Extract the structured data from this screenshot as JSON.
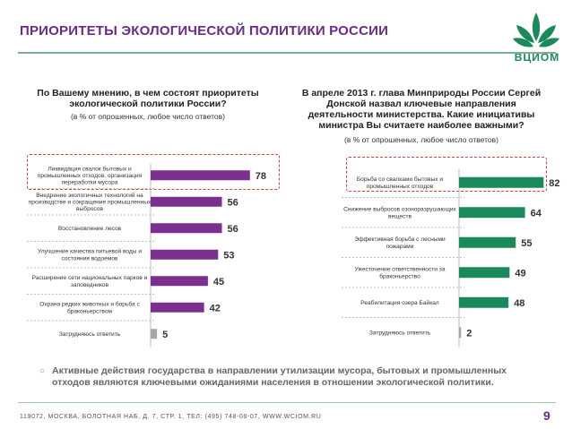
{
  "header": {
    "title": "ПРИОРИТЕТЫ ЭКОЛОГИЧЕСКОЙ ПОЛИТИКИ РОССИИ",
    "logo_text": "ВЦИОМ"
  },
  "left": {
    "question": "По Вашему мнению, в чем состоят приоритеты экологической политики России?",
    "subtitle": "(в % от опрошенных, любое число ответов)"
  },
  "right": {
    "question": "В апреле 2013 г. глава Минприроды России Сергей Донской назвал ключевые направления деятельности министерства. Какие инициативы министра Вы считаете наиболее важными?",
    "subtitle": "(в % от опрошенных, любое число ответов)"
  },
  "chart_data": [
    {
      "type": "bar",
      "orientation": "horizontal",
      "color": "#7b2f8e",
      "gray_color": "#a6a6a6",
      "categories": [
        "Ликвидация свалок бытовых и промышленных отходов, организация переработки мусора",
        "Внедрение экологичных технологий на производстве и сокращение промышленных выбросов",
        "Восстановление лесов",
        "Улучшение качества питьевой воды и состояния водоемов",
        "Расширение сети национальных парков и заповедников",
        "Охрана редких животных и борьба с браконьерством",
        "Затрудняюсь ответить"
      ],
      "values": [
        78,
        56,
        56,
        53,
        45,
        42,
        5
      ],
      "highlight_index": 0,
      "gray_index": 6
    },
    {
      "type": "bar",
      "orientation": "horizontal",
      "color": "#1a8a5c",
      "gray_color": "#a6a6a6",
      "categories": [
        "Борьба со свалками бытовых и промышленных отходов",
        "Снижение выбросов озоноразрушающих веществ",
        "Эффективная борьба с лесными пожарами",
        "Ужесточение ответственности за браконьерство",
        "Реабилитация озера Байкал",
        "Затрудняюсь ответить"
      ],
      "values": [
        82,
        64,
        55,
        49,
        48,
        2
      ],
      "highlight_index": 0,
      "gray_index": 5
    }
  ],
  "conclusion": "Активные действия государства в направлении утилизации мусора, бытовых и промышленных отходов являются ключевыми ожиданиями населения в отношении экологической политики.",
  "footer": {
    "address": "119072, МОСКВА, БОЛОТНАЯ НАБ, Д. 7, СТР. 1, ТЕЛ: (495) 748-08-07, WWW.WCIOM.RU",
    "page": "9"
  }
}
